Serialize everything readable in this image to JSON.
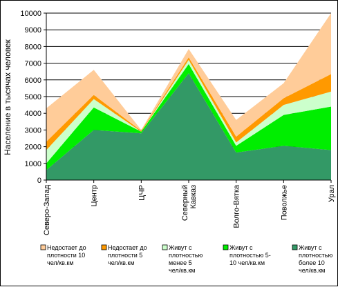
{
  "chart_data": {
    "type": "area",
    "stacked": true,
    "title": "",
    "xlabel": "",
    "ylabel": "Население в тысячах человек",
    "ylim": [
      0,
      10000
    ],
    "yticks": [
      0,
      1000,
      2000,
      3000,
      4000,
      5000,
      6000,
      7000,
      8000,
      9000,
      10000
    ],
    "grid": "horizontal",
    "legend_position": "bottom",
    "categories": [
      [
        "Северо-Запад"
      ],
      [
        "Центр"
      ],
      [
        "ЦЧР"
      ],
      [
        "Северный",
        "Кавказ"
      ],
      [
        "Волго-Вятка"
      ],
      [
        "Поволжье"
      ],
      [
        "Урал"
      ]
    ],
    "series": [
      {
        "name": [
          "Живут с",
          "плотностью",
          "более 10",
          "чел/кв.км"
        ],
        "color": "#339966",
        "values": [
          600,
          3000,
          2800,
          6400,
          1650,
          2050,
          1800
        ]
      },
      {
        "name": [
          "Живут с",
          "плотностью 5-",
          "10 чел/кв.км"
        ],
        "color": "#00ee00",
        "values": [
          400,
          1350,
          100,
          550,
          400,
          1850,
          2600
        ]
      },
      {
        "name": [
          "Живут с",
          "плотностью",
          "менее 5",
          "чел/кв.км"
        ],
        "color": "#ccffcc",
        "values": [
          800,
          500,
          0,
          250,
          200,
          600,
          900
        ]
      },
      {
        "name": [
          "Недостает до",
          "плотности 5",
          "чел/кв.км"
        ],
        "color": "#ff9900",
        "values": [
          500,
          250,
          50,
          150,
          350,
          400,
          1050
        ]
      },
      {
        "name": [
          "Недостает до",
          "плотности 10",
          "чел/кв.км"
        ],
        "color": "#ffcc99",
        "values": [
          2000,
          1500,
          50,
          500,
          1000,
          900,
          3650
        ]
      }
    ],
    "legend_order": [
      4,
      3,
      2,
      1,
      0
    ]
  }
}
